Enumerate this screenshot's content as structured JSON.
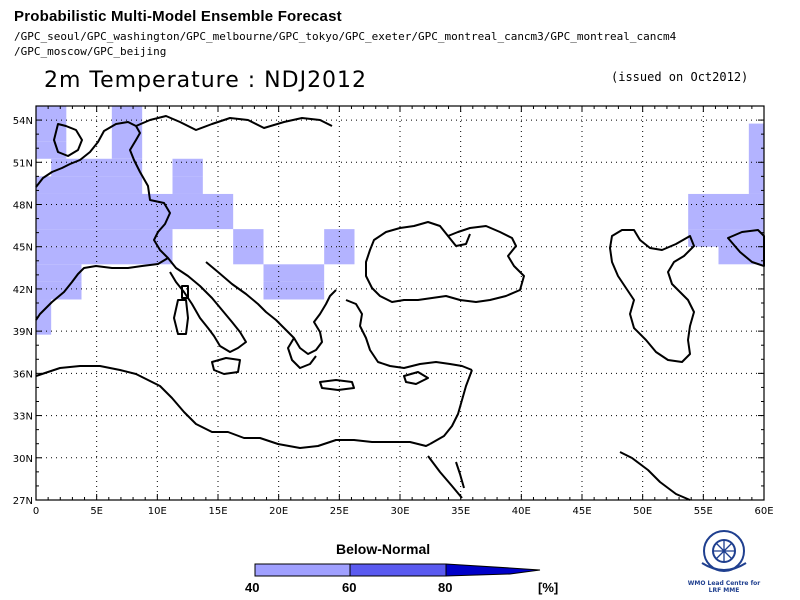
{
  "header": {
    "title": "Probabilistic Multi-Model Ensemble Forecast",
    "models_line1": "/GPC_seoul/GPC_washington/GPC_melbourne/GPC_tokyo/GPC_exeter/GPC_montreal_cancm3/GPC_montreal_cancm4",
    "models_line2": "/GPC_moscow/GPC_beijing",
    "variable": "2m Temperature : NDJ2012",
    "issued": "(issued on Oct2012)"
  },
  "map": {
    "lon_range": [
      0,
      60
    ],
    "lat_range": [
      27,
      55
    ],
    "x_ticks": [
      "0",
      "5E",
      "10E",
      "15E",
      "20E",
      "25E",
      "30E",
      "35E",
      "40E",
      "45E",
      "50E",
      "55E",
      "60E"
    ],
    "y_ticks": [
      "27N",
      "30N",
      "33N",
      "36N",
      "39N",
      "42N",
      "45N",
      "48N",
      "51N",
      "54N"
    ],
    "x_tick_values": [
      0,
      5,
      10,
      15,
      20,
      25,
      30,
      35,
      40,
      45,
      50,
      55,
      60
    ],
    "y_tick_values": [
      27,
      30,
      33,
      36,
      39,
      42,
      45,
      48,
      51,
      54
    ],
    "grid": "dotted",
    "shade_color": "#b3b3ff",
    "cells_40_60": [
      [
        0,
        2.5,
        52.5,
        55
      ],
      [
        6.25,
        8.75,
        51.25,
        55
      ],
      [
        0,
        2.5,
        51.25,
        52.5
      ],
      [
        1.25,
        8.75,
        50,
        51.25
      ],
      [
        11.25,
        13.75,
        50,
        51.25
      ],
      [
        0,
        8.75,
        48.75,
        50
      ],
      [
        11.25,
        13.75,
        48.75,
        50
      ],
      [
        0,
        16.25,
        46.25,
        48.75
      ],
      [
        0,
        11.25,
        45,
        46.25
      ],
      [
        16.25,
        18.75,
        45,
        46.25
      ],
      [
        23.75,
        26.25,
        45,
        46.25
      ],
      [
        0,
        11.25,
        43.75,
        45
      ],
      [
        16.25,
        18.75,
        43.75,
        45
      ],
      [
        23.75,
        26.25,
        43.75,
        45
      ],
      [
        0,
        3.75,
        42.5,
        43.75
      ],
      [
        18.75,
        23.75,
        42.5,
        43.75
      ],
      [
        0,
        3.75,
        41.25,
        42.5
      ],
      [
        18.75,
        23.75,
        41.25,
        42.5
      ],
      [
        0,
        1.25,
        38.75,
        41.25
      ],
      [
        53.75,
        60,
        46.25,
        48.75
      ],
      [
        58.75,
        60,
        48.75,
        53.75
      ],
      [
        53.75,
        56.25,
        45,
        46.25
      ],
      [
        56.25,
        60,
        43.75,
        46.25
      ]
    ]
  },
  "legend": {
    "title": "Below-Normal",
    "labels": [
      "40",
      "60",
      "80"
    ],
    "unit": "[%]",
    "colors": [
      "#a0a0ff",
      "#5a5af0",
      "#0000c8"
    ]
  },
  "logo": {
    "name": "WMO Lead Centre for LRF MME",
    "line1": "WMO Lead Centre for",
    "line2": "LRF MME"
  }
}
